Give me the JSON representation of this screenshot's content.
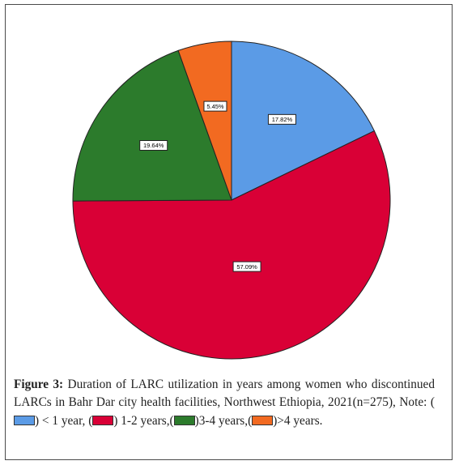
{
  "chart_data": {
    "type": "pie",
    "title": "",
    "start_angle_deg": 0,
    "direction": "clockwise",
    "slices": [
      {
        "label": "< 1 year",
        "value": 17.82,
        "data_label": "17.82%",
        "color": "#5b9be6"
      },
      {
        "label": "1-2 years",
        "value": 57.09,
        "data_label": "57.09%",
        "color": "#d90036"
      },
      {
        "label": "3-4 years",
        "value": 19.64,
        "data_label": "19.64%",
        "color": "#2c7b2c"
      },
      {
        "label": ">4 years",
        "value": 5.45,
        "data_label": "5.45%",
        "color": "#f26a21"
      }
    ]
  },
  "caption": {
    "figure_label": "Figure 3:",
    "text_main": "Duration of LARC utilization in years among women who discontinued LARCs in Bahr Dar city health facilities, Northwest Ethiopia, 2021(n=275), Note:",
    "legend": [
      {
        "before": "(",
        "after": ") < 1 year,",
        "color": "#5b9be6"
      },
      {
        "before": "(",
        "after": ") 1-2 years,",
        "color": "#d90036"
      },
      {
        "before": "(",
        "after": ")3-4 years,",
        "color": "#2c7b2c"
      },
      {
        "before": "(",
        "after": ")>4 years.",
        "color": "#f26a21"
      }
    ]
  }
}
